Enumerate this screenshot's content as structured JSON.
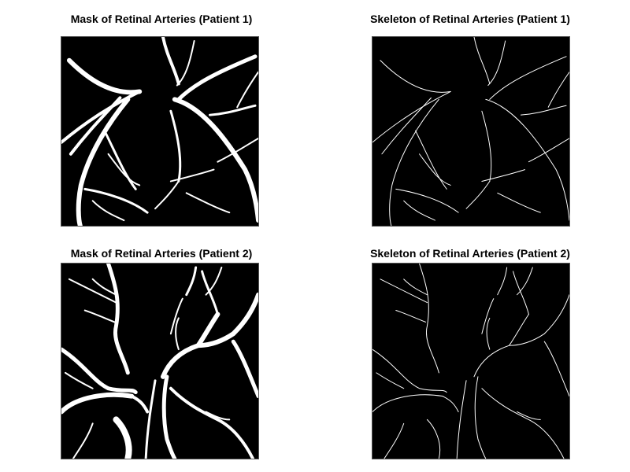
{
  "figure": {
    "panels": [
      {
        "title": "Mask of Retinal Arteries (Patient 1)",
        "type": "mask"
      },
      {
        "title": "Skeleton of Retinal Arteries (Patient 1)",
        "type": "skeleton"
      },
      {
        "title": "Mask of Retinal Arteries (Patient 2)",
        "type": "mask"
      },
      {
        "title": "Skeleton of Retinal Arteries (Patient 2)",
        "type": "skeleton"
      }
    ],
    "colors": {
      "background": "#000000",
      "vessel": "#ffffff",
      "page": "#ffffff"
    }
  }
}
